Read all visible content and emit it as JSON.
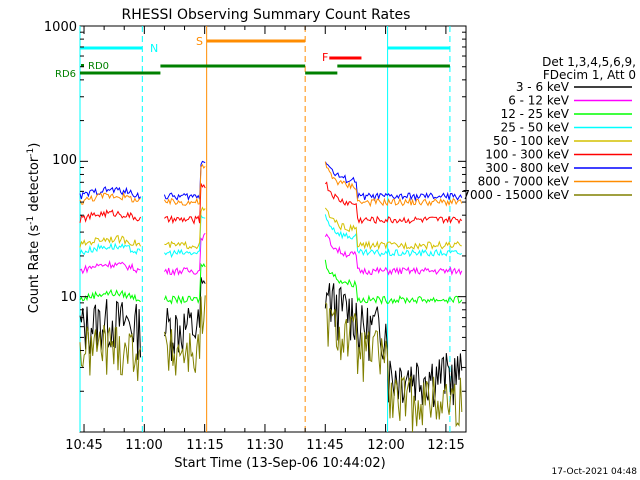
{
  "chart_data": {
    "type": "line",
    "title": "RHESSI Observing Summary Count Rates",
    "xlabel": "Start Time (13-Sep-06 10:44:02)",
    "ylabel_main": "Count Rate (s",
    "ylabel_sup1": "-1",
    "ylabel_mid": " detector",
    "ylabel_sup2": "-1",
    "ylabel_end": ")",
    "yscale": "log",
    "xlim_minutes": [
      0,
      96
    ],
    "ylim": [
      1,
      1000
    ],
    "x_tick_labels": [
      "10:45",
      "11:00",
      "11:15",
      "11:30",
      "11:45",
      "12:00",
      "12:15"
    ],
    "x_tick_minutes": [
      1,
      16,
      31,
      46,
      61,
      76,
      91
    ],
    "y_tick_labels": [
      "10",
      "100",
      "1000"
    ],
    "y_tick_values": [
      10,
      100,
      1000
    ],
    "legend_header": [
      "Det 1,3,4,5,6,9,",
      "FDecim 1, Att 0"
    ],
    "legend_position": "right",
    "series": [
      {
        "name": "3 - 6 keV",
        "color": "#000000",
        "base": 6.0
      },
      {
        "name": "6 - 12 keV",
        "color": "#ff00ff",
        "base": 15.5
      },
      {
        "name": "12 - 25 keV",
        "color": "#00ff00",
        "base": 9.5
      },
      {
        "name": "25 - 50 keV",
        "color": "#00ffff",
        "base": 21.0
      },
      {
        "name": "50 - 100 keV",
        "color": "#d4c000",
        "base": 24.0
      },
      {
        "name": "100 - 300 keV",
        "color": "#ff0000",
        "base": 37.0
      },
      {
        "name": "300 - 800 keV",
        "color": "#0000ff",
        "base": 55.0
      },
      {
        "name": "800 - 7000 keV",
        "color": "#ff8c00",
        "base": 50.0
      },
      {
        "name": "7000 - 15000 keV",
        "color": "#808000",
        "base": 4.0
      }
    ],
    "flags": {
      "N": {
        "label": "N",
        "color": "#00ffff",
        "segments": [
          [
            0,
            15.5
          ],
          [
            76.5,
            92
          ]
        ]
      },
      "S": {
        "label": "S",
        "color": "#ff8c00",
        "segments": [
          [
            31.5,
            56
          ]
        ]
      },
      "F": {
        "label": "F",
        "color": "#ff0000",
        "segments": [
          [
            62,
            70
          ]
        ]
      },
      "RD0": {
        "label": "RD0",
        "color": "#008000"
      },
      "RD6": {
        "label": "RD6",
        "color": "#008000",
        "segments": [
          [
            0,
            20
          ],
          [
            20,
            56
          ],
          [
            56,
            64
          ],
          [
            64,
            92
          ]
        ]
      }
    },
    "vlines": [
      {
        "minute": 0,
        "color": "#00ffff",
        "style": "solid"
      },
      {
        "minute": 15.5,
        "color": "#00ffff",
        "style": "dash"
      },
      {
        "minute": 31.5,
        "color": "#ff8c00",
        "style": "solid"
      },
      {
        "minute": 56,
        "color": "#ff8c00",
        "style": "dash"
      },
      {
        "minute": 76.5,
        "color": "#00ffff",
        "style": "solid"
      },
      {
        "minute": 92,
        "color": "#00ffff",
        "style": "dash"
      }
    ],
    "footer_date": "17-Oct-2021 04:48"
  }
}
